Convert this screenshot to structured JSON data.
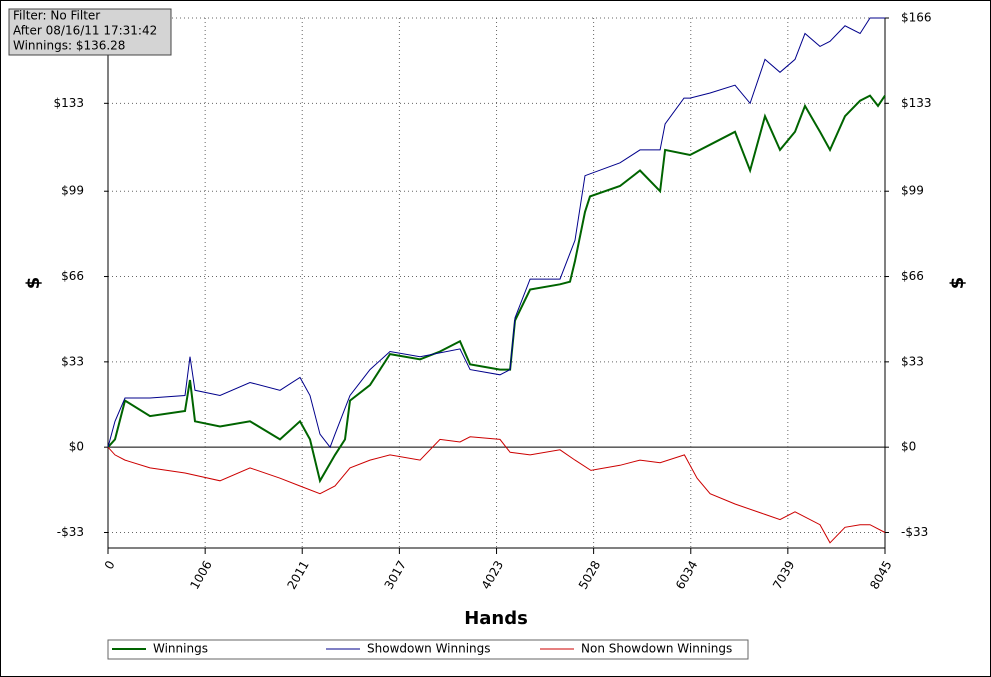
{
  "chart_data": {
    "type": "line",
    "xlabel": "Hands",
    "ylabel": "$",
    "annotations": [
      "Filter: No Filter",
      "After 08/16/11 17:31:42",
      "Winnings: $136.28"
    ],
    "xlim": [
      0,
      8045
    ],
    "xticks": [
      0,
      1006,
      2011,
      3017,
      4023,
      5028,
      6034,
      7039,
      8045
    ],
    "ylim": [
      -39,
      166
    ],
    "yticks": [
      {
        "value": -33,
        "label": "-$33"
      },
      {
        "value": 0,
        "label": "$0"
      },
      {
        "value": 33,
        "label": "$33"
      },
      {
        "value": 66,
        "label": "$66"
      },
      {
        "value": 99,
        "label": "$99"
      },
      {
        "value": 133,
        "label": "$133"
      },
      {
        "value": 166,
        "label": "$166"
      }
    ],
    "grid": true,
    "legend": "bottom",
    "series": [
      {
        "name": "Winnings",
        "color": "#006400",
        "x": [
          0,
          72,
          176,
          435,
          797,
          849,
          901,
          1160,
          1470,
          1781,
          1988,
          2091,
          2195,
          2350,
          2454,
          2506,
          2713,
          2920,
          3231,
          3438,
          3645,
          3749,
          4059,
          4163,
          4214,
          4370,
          4680,
          4784,
          4835,
          4939,
          4991,
          5301,
          5508,
          5716,
          5768,
          6026,
          6234,
          6492,
          6648,
          6803,
          6958,
          7113,
          7217,
          7372,
          7476,
          7631,
          7787,
          7890,
          7973,
          8045
        ],
        "values": [
          0,
          3,
          18,
          12,
          14,
          26,
          10,
          8,
          10,
          3,
          10,
          3,
          -13,
          -3,
          3,
          18,
          24,
          36,
          34,
          37,
          41,
          32,
          30,
          30,
          49,
          61,
          63,
          64,
          72,
          91,
          97,
          101,
          107,
          99,
          115,
          113,
          117,
          122,
          107,
          128,
          115,
          122,
          132,
          122,
          115,
          128,
          134,
          136,
          132,
          136
        ]
      },
      {
        "name": "Showdown Winnings",
        "color": "#00008b",
        "x": [
          0,
          72,
          176,
          435,
          797,
          849,
          901,
          1160,
          1470,
          1781,
          1988,
          2091,
          2195,
          2300,
          2350,
          2506,
          2713,
          2920,
          3231,
          3645,
          3749,
          4059,
          4163,
          4214,
          4370,
          4680,
          4835,
          4939,
          5301,
          5508,
          5716,
          5768,
          5964,
          6026,
          6234,
          6492,
          6648,
          6803,
          6958,
          7113,
          7217,
          7372,
          7476,
          7631,
          7787,
          7890,
          8045
        ],
        "values": [
          0,
          10,
          19,
          19,
          20,
          35,
          22,
          20,
          25,
          22,
          27,
          20,
          5,
          0,
          5,
          20,
          30,
          37,
          35,
          38,
          30,
          28,
          30,
          50,
          65,
          65,
          80,
          105,
          110,
          115,
          115,
          125,
          135,
          135,
          137,
          140,
          133,
          150,
          145,
          150,
          160,
          155,
          157,
          163,
          160,
          166,
          166
        ]
      },
      {
        "name": "Non Showdown Winnings",
        "color": "#cc0000",
        "x": [
          0,
          72,
          176,
          435,
          797,
          1160,
          1470,
          1781,
          1988,
          2195,
          2350,
          2506,
          2713,
          2920,
          3231,
          3438,
          3645,
          3749,
          4059,
          4163,
          4370,
          4680,
          4835,
          5000,
          5301,
          5508,
          5716,
          5968,
          6100,
          6234,
          6492,
          6803,
          6958,
          7113,
          7372,
          7476,
          7631,
          7787,
          7890,
          8045
        ],
        "values": [
          0,
          -3,
          -5,
          -8,
          -10,
          -13,
          -8,
          -12,
          -15,
          -18,
          -15,
          -8,
          -5,
          -3,
          -5,
          3,
          2,
          4,
          3,
          -2,
          -3,
          -1,
          -5,
          -9,
          -7,
          -5,
          -6,
          -3,
          -12,
          -18,
          -22,
          -26,
          -28,
          -25,
          -30,
          -37,
          -31,
          -30,
          -30,
          -33
        ]
      }
    ]
  }
}
